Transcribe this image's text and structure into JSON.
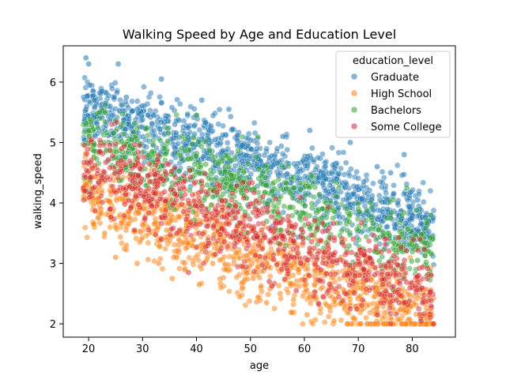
{
  "chart_data": {
    "type": "scatter",
    "title": "Walking Speed by Age and Education Level",
    "xlabel": "age",
    "ylabel": "walking_speed",
    "xlim": [
      15.3,
      88.0
    ],
    "ylim": [
      1.78,
      6.6
    ],
    "xticks": [
      20,
      30,
      40,
      50,
      60,
      70,
      80
    ],
    "yticks": [
      2,
      3,
      4,
      5,
      6
    ],
    "grid": false,
    "legend": {
      "title": "education_level",
      "placement": "top-right"
    },
    "series": [
      {
        "name": "Graduate",
        "color": "#1f77b4",
        "trend": [
          [
            20,
            5.55
          ],
          [
            30,
            5.3
          ],
          [
            40,
            5.0
          ],
          [
            50,
            4.65
          ],
          [
            60,
            4.35
          ],
          [
            70,
            4.05
          ],
          [
            80,
            3.75
          ],
          [
            83,
            3.65
          ]
        ],
        "x": [
          19.5,
          20.0,
          20.2,
          21.0,
          22.5,
          24.0,
          25.5,
          27.0,
          29.0,
          31.0,
          33.5,
          36.0,
          38.5,
          41.0,
          43.5,
          46.0,
          48.5,
          51.0,
          53.5,
          56.0,
          58.5,
          61.0,
          63.5,
          66.0,
          68.5,
          71.0,
          73.5,
          76.0,
          78.5,
          81.0,
          83.0
        ],
        "y": [
          6.4,
          6.3,
          5.95,
          5.7,
          5.85,
          5.6,
          6.3,
          5.75,
          5.55,
          5.45,
          6.05,
          5.3,
          5.25,
          5.7,
          5.05,
          5.55,
          4.95,
          4.85,
          4.75,
          5.1,
          4.6,
          5.2,
          4.45,
          4.4,
          5.0,
          4.35,
          4.6,
          4.5,
          4.8,
          4.05,
          3.7
        ]
      },
      {
        "name": "High School",
        "color": "#ff7f0e",
        "trend": [
          [
            20,
            4.25
          ],
          [
            30,
            3.8
          ],
          [
            40,
            3.45
          ],
          [
            50,
            3.1
          ],
          [
            60,
            2.8
          ],
          [
            70,
            2.5
          ],
          [
            80,
            2.25
          ],
          [
            83,
            2.15
          ]
        ],
        "x": [
          19.5,
          21.0,
          23.0,
          25.0,
          27.0,
          29.0,
          31.0,
          33.0,
          35.5,
          38.0,
          40.5,
          43.0,
          45.5,
          48.0,
          50.5,
          53.0,
          55.5,
          58.0,
          60.5,
          63.0,
          65.5,
          68.0,
          70.5,
          73.0,
          75.5,
          78.0,
          80.5,
          82.5,
          84.0
        ],
        "y": [
          4.3,
          3.65,
          3.5,
          3.1,
          3.3,
          3.0,
          3.6,
          3.0,
          2.75,
          3.25,
          2.65,
          3.0,
          2.9,
          2.45,
          2.75,
          2.35,
          2.5,
          2.4,
          2.15,
          2.25,
          2.05,
          2.0,
          2.0,
          2.0,
          2.0,
          2.0,
          2.0,
          2.0,
          2.0
        ]
      },
      {
        "name": "Bachelors",
        "color": "#2ca02c",
        "trend": [
          [
            20,
            5.05
          ],
          [
            30,
            4.8
          ],
          [
            40,
            4.5
          ],
          [
            50,
            4.2
          ],
          [
            60,
            3.9
          ],
          [
            70,
            3.6
          ],
          [
            80,
            3.35
          ],
          [
            83,
            3.25
          ]
        ],
        "x": [
          20.0,
          22.0,
          25.0,
          28.0,
          31.0,
          34.0,
          37.0,
          40.0,
          43.0,
          46.0,
          49.0,
          52.0,
          55.0,
          58.0,
          61.0,
          64.0,
          67.0,
          70.0,
          73.0,
          76.0,
          79.0,
          81.0,
          83.0
        ],
        "y": [
          5.2,
          5.5,
          4.6,
          5.05,
          4.45,
          4.9,
          4.2,
          5.45,
          4.1,
          4.6,
          3.85,
          4.45,
          3.7,
          4.25,
          3.6,
          4.0,
          3.35,
          3.9,
          3.2,
          3.75,
          4.25,
          3.05,
          3.2
        ]
      },
      {
        "name": "Some College",
        "color": "#d62728",
        "trend": [
          [
            20,
            4.6
          ],
          [
            30,
            4.25
          ],
          [
            40,
            3.9
          ],
          [
            50,
            3.6
          ],
          [
            60,
            3.25
          ],
          [
            70,
            2.95
          ],
          [
            80,
            2.65
          ],
          [
            83,
            2.55
          ]
        ],
        "x": [
          19.2,
          20.5,
          22.0,
          24.0,
          26.0,
          28.5,
          31.0,
          33.5,
          36.0,
          38.5,
          41.0,
          43.5,
          46.0,
          48.5,
          51.0,
          53.5,
          56.0,
          58.5,
          61.0,
          63.5,
          66.0,
          68.5,
          71.0,
          73.5,
          76.0,
          78.5,
          81.0,
          83.5
        ],
        "y": [
          4.2,
          5.05,
          4.85,
          3.9,
          4.7,
          3.55,
          4.45,
          3.4,
          4.15,
          2.85,
          3.95,
          3.15,
          3.65,
          2.95,
          3.5,
          2.7,
          3.45,
          2.55,
          3.25,
          2.45,
          3.05,
          2.25,
          2.9,
          2.15,
          2.95,
          2.35,
          2.7,
          2.8
        ]
      }
    ]
  }
}
